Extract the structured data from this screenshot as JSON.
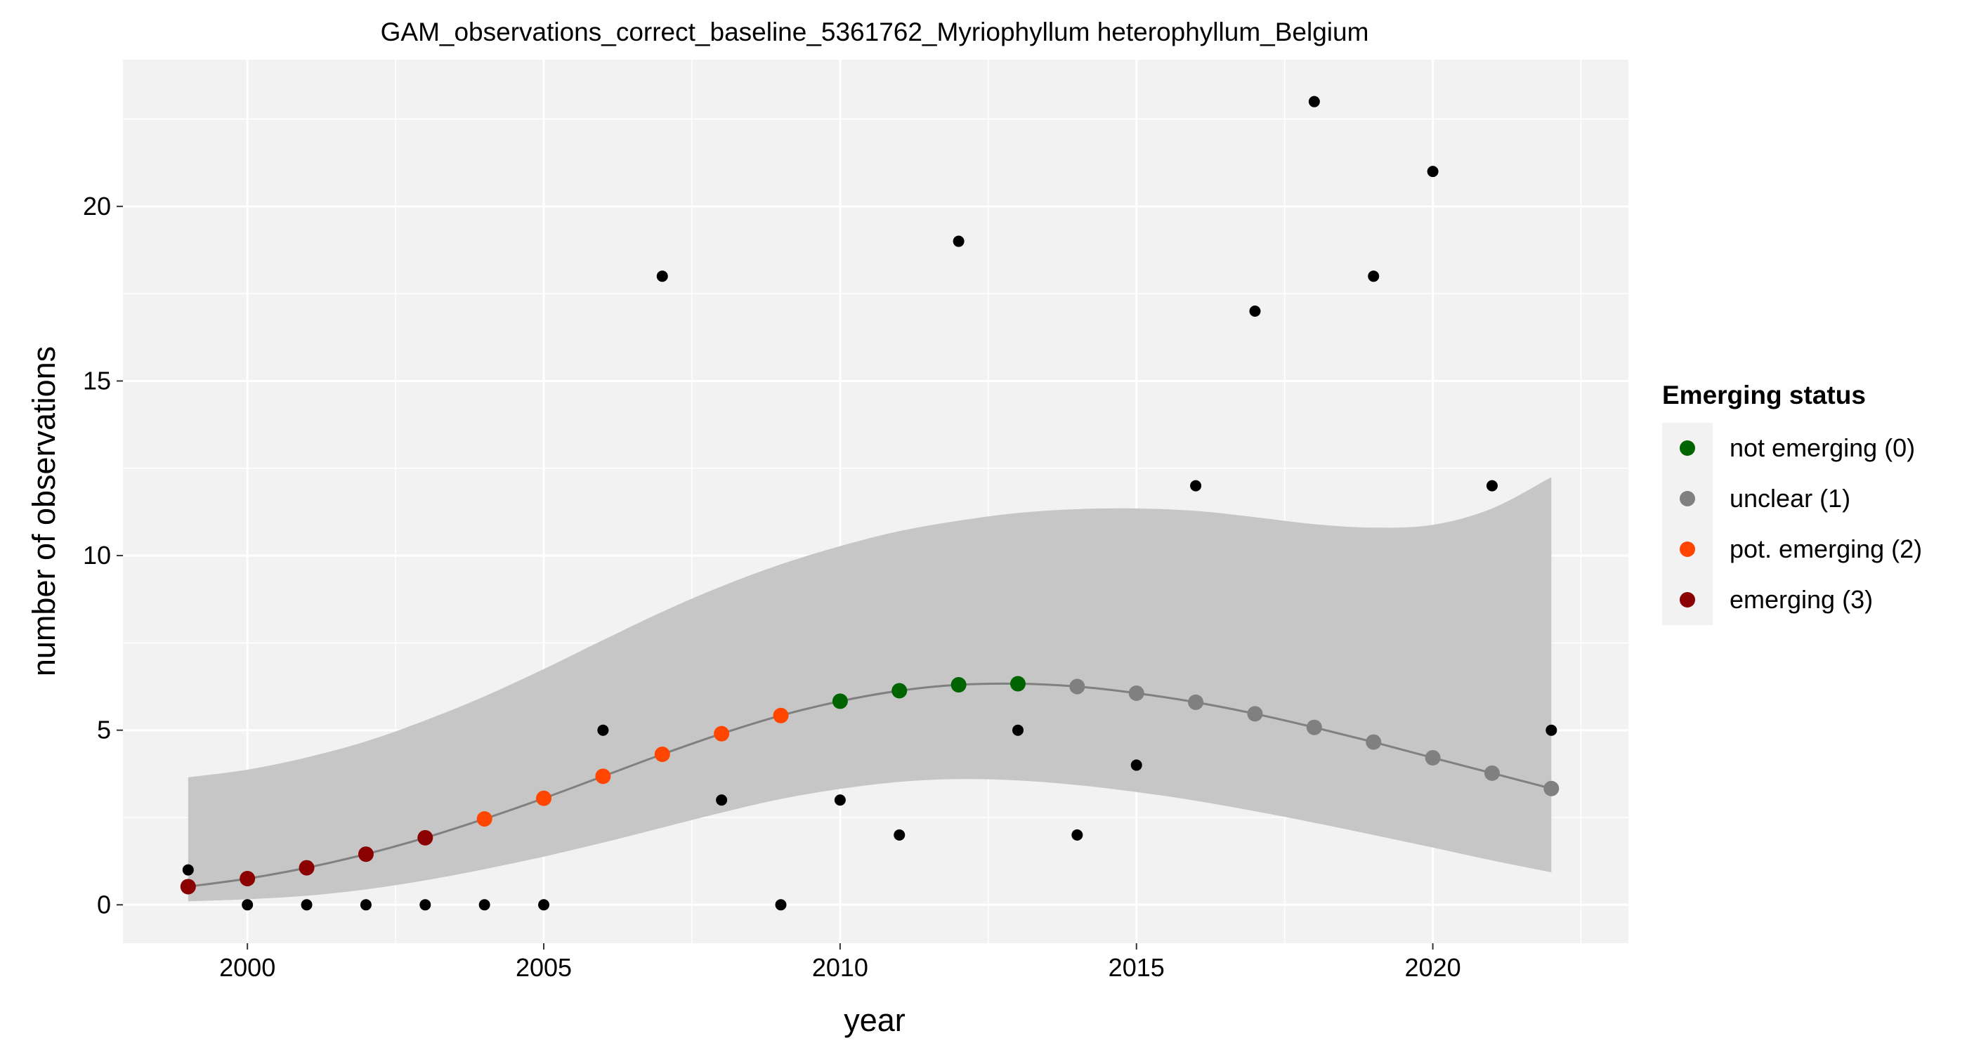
{
  "chart_data": {
    "type": "scatter",
    "title": "GAM_observations_correct_baseline_5361762_Myriophyllum heterophyllum_Belgium",
    "xlabel": "year",
    "ylabel": "number of observations",
    "xlim": [
      1997.9,
      2023.3
    ],
    "ylim": [
      -1.1,
      24.2
    ],
    "x_ticks": [
      2000,
      2005,
      2010,
      2015,
      2020
    ],
    "y_ticks": [
      0,
      5,
      10,
      15,
      20
    ],
    "grid": true,
    "panel_background": "#f2f2f2",
    "legend_position": "right",
    "legend": {
      "title": "Emerging status",
      "entries": [
        {
          "status": 0,
          "label": "not emerging (0)",
          "color": "#006400"
        },
        {
          "status": 1,
          "label": "unclear (1)",
          "color": "#808080"
        },
        {
          "status": 2,
          "label": "pot. emerging (2)",
          "color": "#ff4500"
        },
        {
          "status": 3,
          "label": "emerging (3)",
          "color": "#8b0000"
        }
      ]
    },
    "observations": {
      "color": "#000000",
      "points": [
        {
          "x": 1999,
          "y": 1
        },
        {
          "x": 2000,
          "y": 0
        },
        {
          "x": 2001,
          "y": 0
        },
        {
          "x": 2002,
          "y": 0
        },
        {
          "x": 2003,
          "y": 0
        },
        {
          "x": 2004,
          "y": 0
        },
        {
          "x": 2005,
          "y": 0
        },
        {
          "x": 2006,
          "y": 5
        },
        {
          "x": 2007,
          "y": 18
        },
        {
          "x": 2008,
          "y": 3
        },
        {
          "x": 2009,
          "y": 0
        },
        {
          "x": 2010,
          "y": 3
        },
        {
          "x": 2011,
          "y": 2
        },
        {
          "x": 2012,
          "y": 19
        },
        {
          "x": 2013,
          "y": 5
        },
        {
          "x": 2014,
          "y": 2
        },
        {
          "x": 2015,
          "y": 4
        },
        {
          "x": 2016,
          "y": 12
        },
        {
          "x": 2017,
          "y": 17
        },
        {
          "x": 2018,
          "y": 23
        },
        {
          "x": 2019,
          "y": 18
        },
        {
          "x": 2020,
          "y": 21
        },
        {
          "x": 2021,
          "y": 12
        },
        {
          "x": 2022,
          "y": 5
        }
      ]
    },
    "gam_fit": {
      "line_color": "#808080",
      "ribbon_color": "#c6c6c6",
      "points": [
        {
          "x": 1999,
          "fit": 0.52,
          "lower": 0.1,
          "upper": 3.65,
          "status": 3
        },
        {
          "x": 2000,
          "fit": 0.75,
          "lower": 0.16,
          "upper": 3.87,
          "status": 3
        },
        {
          "x": 2001,
          "fit": 1.06,
          "lower": 0.26,
          "upper": 4.22,
          "status": 3
        },
        {
          "x": 2002,
          "fit": 1.45,
          "lower": 0.44,
          "upper": 4.68,
          "status": 3
        },
        {
          "x": 2003,
          "fit": 1.92,
          "lower": 0.7,
          "upper": 5.28,
          "status": 3
        },
        {
          "x": 2004,
          "fit": 2.46,
          "lower": 1.02,
          "upper": 5.97,
          "status": 2
        },
        {
          "x": 2005,
          "fit": 3.05,
          "lower": 1.38,
          "upper": 6.75,
          "status": 2
        },
        {
          "x": 2006,
          "fit": 3.68,
          "lower": 1.78,
          "upper": 7.58,
          "status": 2
        },
        {
          "x": 2007,
          "fit": 4.31,
          "lower": 2.21,
          "upper": 8.39,
          "status": 2
        },
        {
          "x": 2008,
          "fit": 4.9,
          "lower": 2.64,
          "upper": 9.12,
          "status": 2
        },
        {
          "x": 2009,
          "fit": 5.42,
          "lower": 3.03,
          "upper": 9.75,
          "status": 2
        },
        {
          "x": 2010,
          "fit": 5.83,
          "lower": 3.32,
          "upper": 10.27,
          "status": 0
        },
        {
          "x": 2011,
          "fit": 6.13,
          "lower": 3.52,
          "upper": 10.7,
          "status": 0
        },
        {
          "x": 2012,
          "fit": 6.3,
          "lower": 3.6,
          "upper": 11.0,
          "status": 0
        },
        {
          "x": 2013,
          "fit": 6.33,
          "lower": 3.56,
          "upper": 11.22,
          "status": 0
        },
        {
          "x": 2014,
          "fit": 6.25,
          "lower": 3.43,
          "upper": 11.33,
          "status": 1
        },
        {
          "x": 2015,
          "fit": 6.06,
          "lower": 3.23,
          "upper": 11.35,
          "status": 1
        },
        {
          "x": 2016,
          "fit": 5.8,
          "lower": 2.98,
          "upper": 11.28,
          "status": 1
        },
        {
          "x": 2017,
          "fit": 5.47,
          "lower": 2.68,
          "upper": 11.1,
          "status": 1
        },
        {
          "x": 2018,
          "fit": 5.08,
          "lower": 2.35,
          "upper": 10.9,
          "status": 1
        },
        {
          "x": 2019,
          "fit": 4.66,
          "lower": 2.0,
          "upper": 10.8,
          "status": 1
        },
        {
          "x": 2020,
          "fit": 4.21,
          "lower": 1.64,
          "upper": 10.88,
          "status": 1
        },
        {
          "x": 2021,
          "fit": 3.77,
          "lower": 1.27,
          "upper": 11.35,
          "status": 1
        },
        {
          "x": 2022,
          "fit": 3.33,
          "lower": 0.93,
          "upper": 12.25,
          "status": 1
        }
      ]
    }
  }
}
